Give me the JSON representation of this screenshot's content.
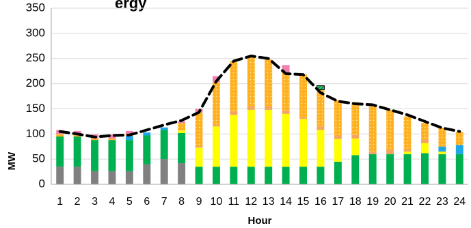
{
  "chart_data": {
    "type": "bar",
    "stacked": true,
    "title_fragment": "ergy",
    "xlabel": "Hour",
    "ylabel": "MW",
    "ylim": [
      0,
      350
    ],
    "yticks": [
      "0",
      "50",
      "100",
      "150",
      "200",
      "250",
      "300",
      "350"
    ],
    "grid": "horizontal",
    "categories": [
      "1",
      "2",
      "3",
      "4",
      "5",
      "6",
      "7",
      "8",
      "9",
      "10",
      "11",
      "12",
      "13",
      "14",
      "15",
      "16",
      "17",
      "18",
      "19",
      "20",
      "21",
      "22",
      "23",
      "24"
    ],
    "series": [
      {
        "color": "#808080",
        "pattern": "solid",
        "values": [
          35,
          35,
          26,
          26,
          26,
          40,
          50,
          42,
          0,
          0,
          0,
          0,
          0,
          0,
          0,
          0,
          0,
          0,
          0,
          0,
          0,
          0,
          0,
          0
        ]
      },
      {
        "color": "#00B050",
        "pattern": "solid",
        "values": [
          60,
          60,
          62,
          62,
          62,
          57,
          58,
          60,
          35,
          35,
          35,
          35,
          35,
          35,
          35,
          35,
          45,
          58,
          60,
          60,
          60,
          62,
          60,
          60
        ]
      },
      {
        "color": "#FFFF00",
        "pattern": "solid",
        "values": [
          0,
          0,
          0,
          0,
          0,
          0,
          0,
          5,
          38,
          80,
          103,
          113,
          113,
          105,
          95,
          73,
          45,
          33,
          0,
          0,
          5,
          20,
          5,
          0
        ]
      },
      {
        "color": "#FFA500",
        "pattern": "solid",
        "values": [
          0,
          0,
          0,
          0,
          0,
          0,
          0,
          0,
          0,
          0,
          0,
          0,
          0,
          0,
          0,
          0,
          0,
          0,
          0,
          0,
          0,
          0,
          0,
          0
        ]
      },
      {
        "color": "#1EA7E8",
        "pattern": "solid",
        "values": [
          0,
          0,
          0,
          0,
          8,
          6,
          5,
          0,
          0,
          0,
          0,
          0,
          0,
          0,
          0,
          0,
          0,
          0,
          0,
          0,
          0,
          0,
          10,
          18
        ]
      },
      {
        "color": "#F4A460",
        "pattern": "solid",
        "values": [
          0,
          0,
          0,
          0,
          0,
          0,
          0,
          0,
          3,
          3,
          7,
          7,
          7,
          7,
          3,
          7,
          7,
          7,
          5,
          8,
          5,
          7,
          0,
          0
        ]
      },
      {
        "color": "#FFB020",
        "pattern": "dotted",
        "values": [
          5,
          3,
          3,
          3,
          4,
          0,
          0,
          15,
          67,
          85,
          100,
          100,
          93,
          75,
          85,
          73,
          70,
          65,
          93,
          80,
          65,
          33,
          37,
          26
        ]
      },
      {
        "color": "#F080B0",
        "pattern": "solid",
        "values": [
          8,
          8,
          8,
          8,
          6,
          0,
          0,
          3,
          7,
          12,
          0,
          0,
          0,
          15,
          0,
          0,
          0,
          0,
          0,
          0,
          0,
          0,
          0,
          0
        ]
      },
      {
        "color": "#2ECC71",
        "pattern": "hatched",
        "values": [
          0,
          0,
          0,
          0,
          0,
          0,
          0,
          0,
          0,
          0,
          0,
          0,
          0,
          0,
          0,
          8,
          0,
          0,
          0,
          0,
          0,
          0,
          0,
          0
        ]
      }
    ],
    "load": {
      "style": "dashed",
      "color": "#000000",
      "values": [
        105,
        100,
        94,
        97,
        98,
        108,
        118,
        127,
        143,
        205,
        245,
        255,
        250,
        220,
        218,
        182,
        165,
        160,
        158,
        148,
        138,
        125,
        112,
        105
      ]
    }
  }
}
